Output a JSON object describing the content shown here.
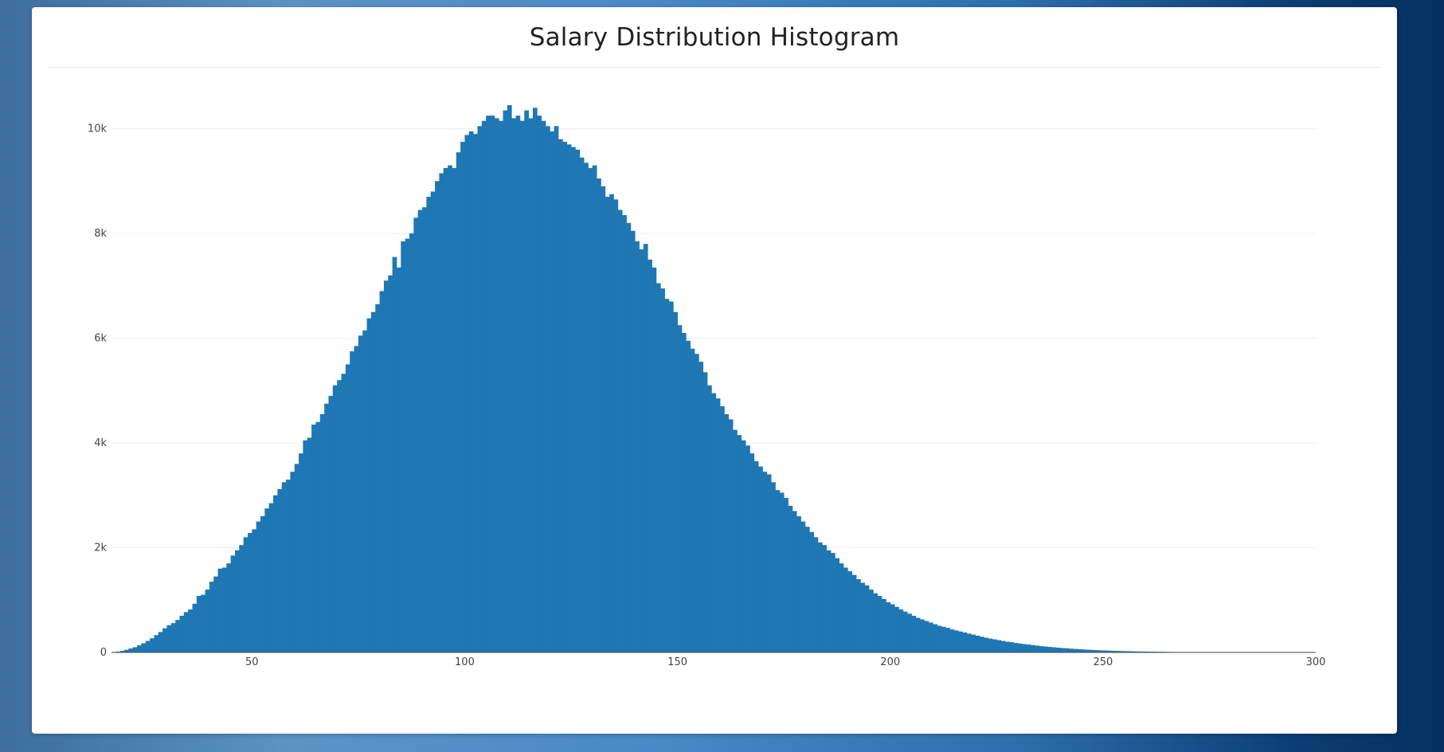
{
  "page": {
    "background_colors": [
      "#3d6e9c",
      "#5b93c6",
      "#4a89c7",
      "#0b3d74",
      "#05305f"
    ],
    "title": "Salary Distribution Histogram"
  },
  "chart_data": {
    "type": "bar",
    "title": "Salary Distribution Histogram",
    "xlabel": "",
    "ylabel": "",
    "xlim": [
      17,
      300
    ],
    "ylim": [
      0,
      10800
    ],
    "grid": true,
    "bar_color": "#1f77b4",
    "bin_width": 1,
    "x_ticks": [
      {
        "value": 50,
        "label": "50"
      },
      {
        "value": 100,
        "label": "100"
      },
      {
        "value": 150,
        "label": "150"
      },
      {
        "value": 200,
        "label": "200"
      },
      {
        "value": 250,
        "label": "250"
      },
      {
        "value": 300,
        "label": "300"
      }
    ],
    "y_ticks": [
      {
        "value": 0,
        "label": "0"
      },
      {
        "value": 2000,
        "label": "2k"
      },
      {
        "value": 4000,
        "label": "4k"
      },
      {
        "value": 6000,
        "label": "6k"
      },
      {
        "value": 8000,
        "label": "8k"
      },
      {
        "value": 10000,
        "label": "10k"
      }
    ],
    "bins": [
      [
        17,
        5
      ],
      [
        18,
        15
      ],
      [
        19,
        30
      ],
      [
        20,
        50
      ],
      [
        21,
        75
      ],
      [
        22,
        100
      ],
      [
        23,
        135
      ],
      [
        24,
        175
      ],
      [
        25,
        220
      ],
      [
        26,
        270
      ],
      [
        27,
        330
      ],
      [
        28,
        390
      ],
      [
        29,
        460
      ],
      [
        30,
        520
      ],
      [
        31,
        560
      ],
      [
        32,
        620
      ],
      [
        33,
        700
      ],
      [
        34,
        770
      ],
      [
        35,
        820
      ],
      [
        36,
        930
      ],
      [
        37,
        1080
      ],
      [
        38,
        1100
      ],
      [
        39,
        1200
      ],
      [
        40,
        1350
      ],
      [
        41,
        1450
      ],
      [
        42,
        1600
      ],
      [
        43,
        1620
      ],
      [
        44,
        1700
      ],
      [
        45,
        1850
      ],
      [
        46,
        1950
      ],
      [
        47,
        2050
      ],
      [
        48,
        2200
      ],
      [
        49,
        2280
      ],
      [
        50,
        2350
      ],
      [
        51,
        2500
      ],
      [
        52,
        2600
      ],
      [
        53,
        2750
      ],
      [
        54,
        2850
      ],
      [
        55,
        3000
      ],
      [
        56,
        3120
      ],
      [
        57,
        3250
      ],
      [
        58,
        3300
      ],
      [
        59,
        3450
      ],
      [
        60,
        3600
      ],
      [
        61,
        3800
      ],
      [
        62,
        4050
      ],
      [
        63,
        4100
      ],
      [
        64,
        4350
      ],
      [
        65,
        4400
      ],
      [
        66,
        4550
      ],
      [
        67,
        4750
      ],
      [
        68,
        4900
      ],
      [
        69,
        5100
      ],
      [
        70,
        5200
      ],
      [
        71,
        5320
      ],
      [
        72,
        5500
      ],
      [
        73,
        5750
      ],
      [
        74,
        5850
      ],
      [
        75,
        6050
      ],
      [
        76,
        6150
      ],
      [
        77,
        6380
      ],
      [
        78,
        6500
      ],
      [
        79,
        6650
      ],
      [
        80,
        6900
      ],
      [
        81,
        7100
      ],
      [
        82,
        7200
      ],
      [
        83,
        7550
      ],
      [
        84,
        7350
      ],
      [
        85,
        7850
      ],
      [
        86,
        7900
      ],
      [
        87,
        8000
      ],
      [
        88,
        8300
      ],
      [
        89,
        8450
      ],
      [
        90,
        8500
      ],
      [
        91,
        8700
      ],
      [
        92,
        8800
      ],
      [
        93,
        9000
      ],
      [
        94,
        9150
      ],
      [
        95,
        9250
      ],
      [
        96,
        9300
      ],
      [
        97,
        9250
      ],
      [
        98,
        9550
      ],
      [
        99,
        9750
      ],
      [
        100,
        9880
      ],
      [
        101,
        9950
      ],
      [
        102,
        9900
      ],
      [
        103,
        10050
      ],
      [
        104,
        10150
      ],
      [
        105,
        10250
      ],
      [
        106,
        10250
      ],
      [
        107,
        10200
      ],
      [
        108,
        10150
      ],
      [
        109,
        10350
      ],
      [
        110,
        10450
      ],
      [
        111,
        10200
      ],
      [
        112,
        10250
      ],
      [
        113,
        10150
      ],
      [
        114,
        10350
      ],
      [
        115,
        10200
      ],
      [
        116,
        10400
      ],
      [
        117,
        10250
      ],
      [
        118,
        10150
      ],
      [
        119,
        10050
      ],
      [
        120,
        9950
      ],
      [
        121,
        10050
      ],
      [
        122,
        9800
      ],
      [
        123,
        9750
      ],
      [
        124,
        9700
      ],
      [
        125,
        9650
      ],
      [
        126,
        9600
      ],
      [
        127,
        9450
      ],
      [
        128,
        9350
      ],
      [
        129,
        9250
      ],
      [
        130,
        9300
      ],
      [
        131,
        9050
      ],
      [
        132,
        8900
      ],
      [
        133,
        8700
      ],
      [
        134,
        8750
      ],
      [
        135,
        8650
      ],
      [
        136,
        8450
      ],
      [
        137,
        8350
      ],
      [
        138,
        8200
      ],
      [
        139,
        8050
      ],
      [
        140,
        7850
      ],
      [
        141,
        7700
      ],
      [
        142,
        7800
      ],
      [
        143,
        7500
      ],
      [
        144,
        7350
      ],
      [
        145,
        7050
      ],
      [
        146,
        6950
      ],
      [
        147,
        6750
      ],
      [
        148,
        6700
      ],
      [
        149,
        6500
      ],
      [
        150,
        6250
      ],
      [
        151,
        6100
      ],
      [
        152,
        5950
      ],
      [
        153,
        5800
      ],
      [
        154,
        5700
      ],
      [
        155,
        5550
      ],
      [
        156,
        5350
      ],
      [
        157,
        5100
      ],
      [
        158,
        4950
      ],
      [
        159,
        4850
      ],
      [
        160,
        4700
      ],
      [
        161,
        4550
      ],
      [
        162,
        4450
      ],
      [
        163,
        4250
      ],
      [
        164,
        4150
      ],
      [
        165,
        4050
      ],
      [
        166,
        3950
      ],
      [
        167,
        3800
      ],
      [
        168,
        3650
      ],
      [
        169,
        3550
      ],
      [
        170,
        3450
      ],
      [
        171,
        3400
      ],
      [
        172,
        3250
      ],
      [
        173,
        3100
      ],
      [
        174,
        3050
      ],
      [
        175,
        2950
      ],
      [
        176,
        2800
      ],
      [
        177,
        2700
      ],
      [
        178,
        2600
      ],
      [
        179,
        2500
      ],
      [
        180,
        2400
      ],
      [
        181,
        2300
      ],
      [
        182,
        2200
      ],
      [
        183,
        2100
      ],
      [
        184,
        2050
      ],
      [
        185,
        1950
      ],
      [
        186,
        1900
      ],
      [
        187,
        1800
      ],
      [
        188,
        1700
      ],
      [
        189,
        1620
      ],
      [
        190,
        1550
      ],
      [
        191,
        1480
      ],
      [
        192,
        1400
      ],
      [
        193,
        1330
      ],
      [
        194,
        1280
      ],
      [
        195,
        1200
      ],
      [
        196,
        1130
      ],
      [
        197,
        1080
      ],
      [
        198,
        1020
      ],
      [
        199,
        960
      ],
      [
        200,
        920
      ],
      [
        201,
        870
      ],
      [
        202,
        820
      ],
      [
        203,
        780
      ],
      [
        204,
        740
      ],
      [
        205,
        700
      ],
      [
        206,
        660
      ],
      [
        207,
        630
      ],
      [
        208,
        600
      ],
      [
        209,
        570
      ],
      [
        210,
        540
      ],
      [
        211,
        510
      ],
      [
        212,
        490
      ],
      [
        213,
        470
      ],
      [
        214,
        440
      ],
      [
        215,
        420
      ],
      [
        216,
        400
      ],
      [
        217,
        380
      ],
      [
        218,
        360
      ],
      [
        219,
        340
      ],
      [
        220,
        320
      ],
      [
        221,
        300
      ],
      [
        222,
        280
      ],
      [
        223,
        265
      ],
      [
        224,
        250
      ],
      [
        225,
        235
      ],
      [
        226,
        220
      ],
      [
        227,
        205
      ],
      [
        228,
        195
      ],
      [
        229,
        180
      ],
      [
        230,
        170
      ],
      [
        231,
        160
      ],
      [
        232,
        150
      ],
      [
        233,
        140
      ],
      [
        234,
        130
      ],
      [
        235,
        120
      ],
      [
        236,
        112
      ],
      [
        237,
        105
      ],
      [
        238,
        98
      ],
      [
        239,
        90
      ],
      [
        240,
        84
      ],
      [
        241,
        78
      ],
      [
        242,
        72
      ],
      [
        243,
        66
      ],
      [
        244,
        61
      ],
      [
        245,
        56
      ],
      [
        246,
        52
      ],
      [
        247,
        48
      ],
      [
        248,
        44
      ],
      [
        249,
        40
      ],
      [
        250,
        37
      ],
      [
        251,
        34
      ],
      [
        252,
        31
      ],
      [
        253,
        28
      ],
      [
        254,
        26
      ],
      [
        255,
        24
      ],
      [
        256,
        22
      ],
      [
        257,
        20
      ],
      [
        258,
        18
      ],
      [
        259,
        16
      ],
      [
        260,
        15
      ],
      [
        261,
        14
      ],
      [
        262,
        13
      ],
      [
        263,
        12
      ],
      [
        264,
        11
      ],
      [
        265,
        10
      ],
      [
        266,
        9
      ],
      [
        267,
        8
      ],
      [
        268,
        7
      ],
      [
        269,
        7
      ],
      [
        270,
        6
      ],
      [
        271,
        6
      ],
      [
        272,
        5
      ],
      [
        273,
        5
      ],
      [
        274,
        4
      ],
      [
        275,
        4
      ],
      [
        276,
        4
      ],
      [
        277,
        3
      ],
      [
        278,
        3
      ],
      [
        279,
        3
      ],
      [
        280,
        3
      ],
      [
        281,
        2
      ],
      [
        282,
        2
      ],
      [
        283,
        2
      ],
      [
        284,
        2
      ],
      [
        285,
        2
      ],
      [
        286,
        2
      ],
      [
        287,
        1
      ],
      [
        288,
        1
      ],
      [
        289,
        1
      ],
      [
        290,
        1
      ],
      [
        291,
        1
      ],
      [
        292,
        1
      ],
      [
        293,
        1
      ],
      [
        294,
        1
      ],
      [
        295,
        1
      ],
      [
        296,
        1
      ],
      [
        297,
        1
      ],
      [
        298,
        1
      ],
      [
        299,
        1
      ]
    ]
  }
}
